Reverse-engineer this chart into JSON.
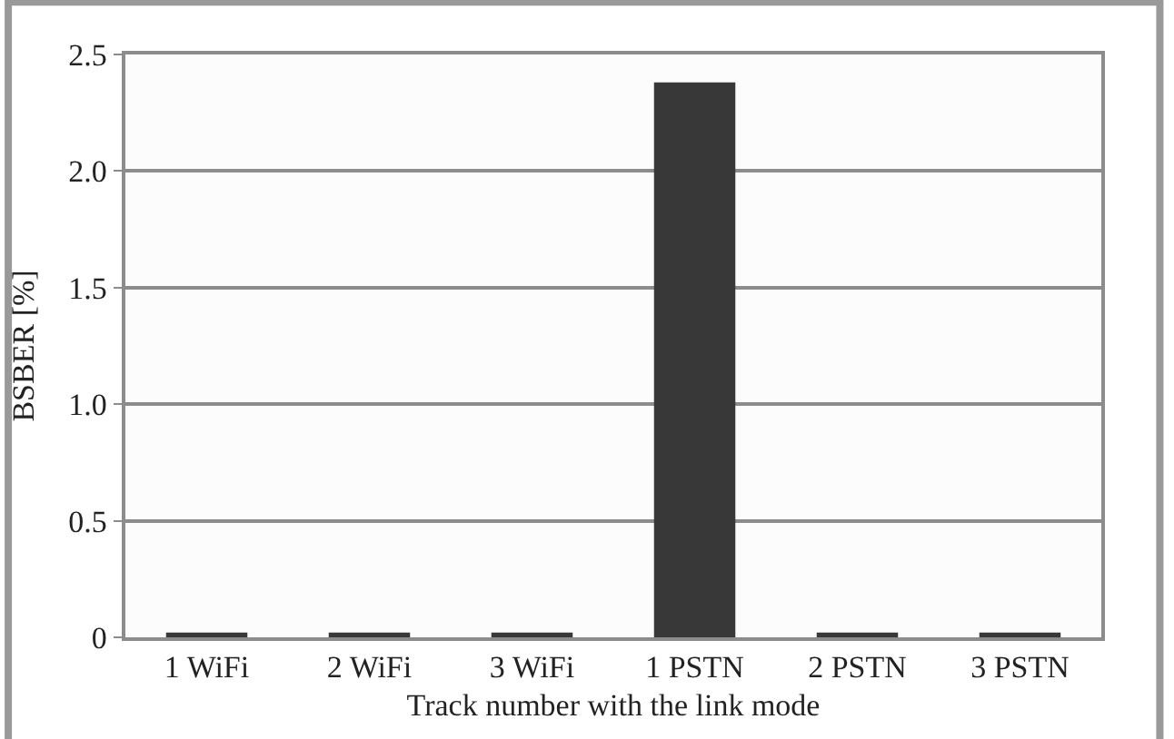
{
  "chart_data": {
    "type": "bar",
    "xlabel": "Track number with the link mode",
    "ylabel": "BSBER [%]",
    "categories": [
      "1 WiFi",
      "2 WiFi",
      "3 WiFi",
      "1 PSTN",
      "2 PSTN",
      "3 PSTN"
    ],
    "values": [
      0.02,
      0.02,
      0.02,
      2.38,
      0.02,
      0.02
    ],
    "color": "#383838",
    "ylim": [
      0,
      2.5
    ],
    "yticks": [
      0,
      0.5,
      {
        "value": 1,
        "label": "1.0"
      },
      1.5,
      {
        "value": 2,
        "label": "2.0"
      },
      2.5
    ],
    "grid": "y",
    "legend": false
  }
}
